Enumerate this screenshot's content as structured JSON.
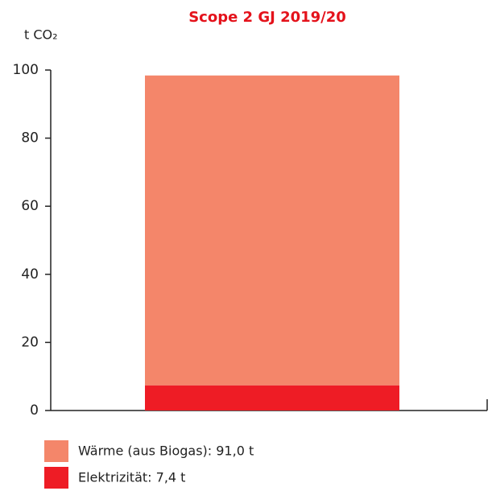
{
  "chart_data": {
    "type": "bar",
    "stacked": true,
    "title": "Scope 2 GJ 2019/20",
    "y_label": "t CO₂",
    "categories": [
      null
    ],
    "series": [
      {
        "name": "Wärme (aus Biogas): 91,0 t",
        "color": "#f4866a",
        "values": [
          91.0
        ]
      },
      {
        "name": "Elektrizität: 7,4 t",
        "color": "#ee1c25",
        "values": [
          7.4
        ]
      }
    ],
    "ylim": [
      0,
      100
    ],
    "yticks": [
      0,
      20,
      40,
      60,
      80,
      100
    ],
    "grid": false
  }
}
